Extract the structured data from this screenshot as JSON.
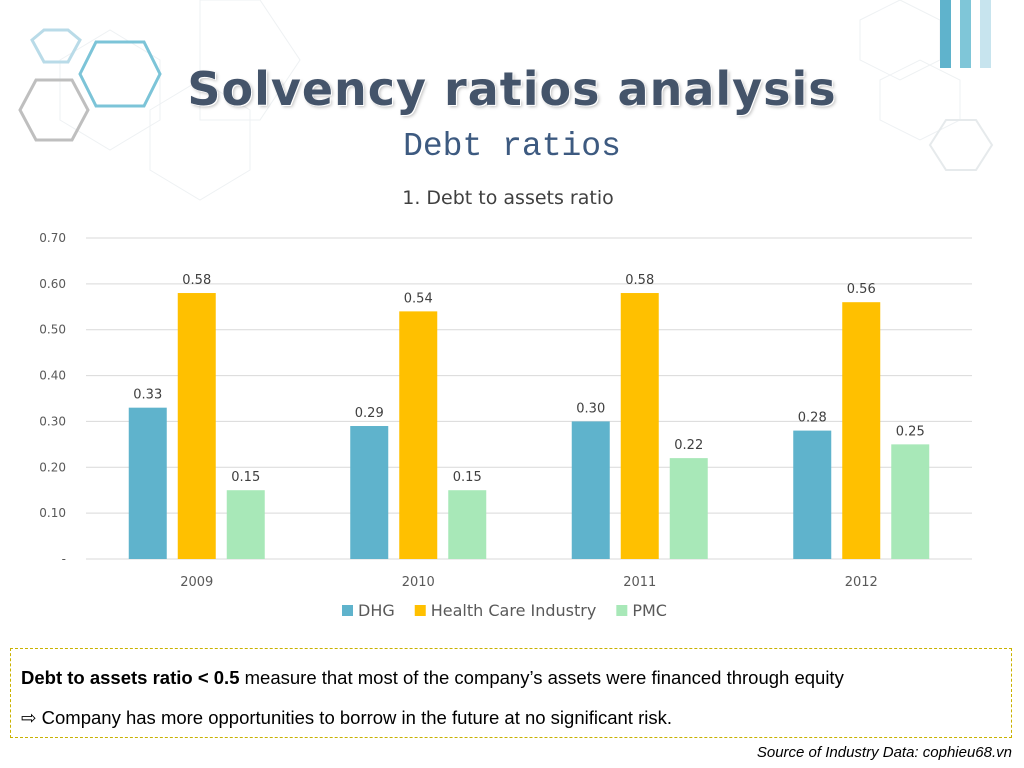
{
  "slide": {
    "title": "Solvency ratios analysis",
    "subtitle": "Debt ratios"
  },
  "chart_data": {
    "type": "bar",
    "title": "1. Debt to assets ratio",
    "categories": [
      "2009",
      "2010",
      "2011",
      "2012"
    ],
    "series": [
      {
        "name": "DHG",
        "color": "#5fb3cc",
        "values": [
          0.33,
          0.29,
          0.3,
          0.28
        ],
        "labels": [
          "0.33",
          "0.29",
          "0.30",
          "0.28"
        ]
      },
      {
        "name": "Health Care Industry",
        "color": "#ffc000",
        "values": [
          0.58,
          0.54,
          0.58,
          0.56
        ],
        "labels": [
          "0.58",
          "0.54",
          "0.58",
          "0.56"
        ]
      },
      {
        "name": "PMC",
        "color": "#a8e8b8",
        "values": [
          0.15,
          0.15,
          0.22,
          0.25
        ],
        "labels": [
          "0.15",
          "0.15",
          "0.22",
          "0.25"
        ]
      }
    ],
    "ylim": [
      0,
      0.7
    ],
    "yticks": [
      "-",
      "0.10",
      "0.20",
      "0.30",
      "0.40",
      "0.50",
      "0.60",
      "0.70"
    ],
    "grid": true,
    "legend_position": "bottom"
  },
  "note": {
    "bold_text": "Debt to assets ratio < 0.5",
    "line1_rest": " measure that most of the company’s assets were financed through equity",
    "arrow_icon": "⇨",
    "line2_text": " Company has more opportunities to borrow in the future at no significant risk."
  },
  "source": "Source of Industry Data: cophieu68.vn"
}
